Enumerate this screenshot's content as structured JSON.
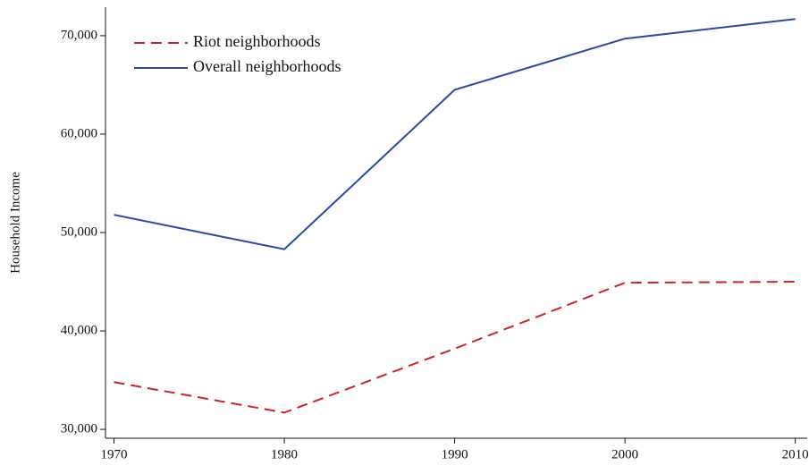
{
  "chart_data": {
    "type": "line",
    "y_label": "Household Income",
    "x": [
      1970,
      1980,
      1990,
      2000,
      2010
    ],
    "series": [
      {
        "name": "Riot neighborhoods",
        "color": "#c0272d",
        "linestyle": "dashed",
        "values": [
          34800,
          31700,
          38200,
          44900,
          45000
        ]
      },
      {
        "name": "Overall neighborhoods",
        "color": "#2b4a9b",
        "linestyle": "solid",
        "values": [
          51800,
          48300,
          64500,
          69700,
          71700
        ]
      }
    ],
    "xlim": [
      1969.5,
      2010.7
    ],
    "xticks": [
      1970,
      1980,
      1990,
      2000,
      2010
    ],
    "ylim": [
      29100,
      72900
    ],
    "yticks": [
      {
        "value": 30000,
        "label": "30,000"
      },
      {
        "value": 40000,
        "label": "40,000"
      },
      {
        "value": 50000,
        "label": "50,000"
      },
      {
        "value": 60000,
        "label": "60,000"
      },
      {
        "value": 70000,
        "label": "70,000"
      }
    ],
    "grid": false,
    "legend": "upper left"
  }
}
